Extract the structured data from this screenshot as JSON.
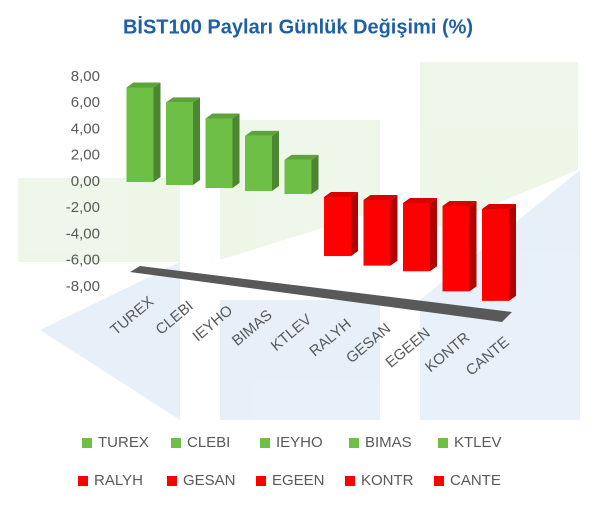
{
  "chart_data": {
    "type": "bar3d",
    "title": "BİST100 Payları Günlük Değişimi (%)",
    "categories": [
      "TUREX",
      "CLEBI",
      "IEYHO",
      "BIMAS",
      "KTLEV",
      "RALYH",
      "GESAN",
      "EGEEN",
      "KONTR",
      "CANTE"
    ],
    "values": [
      7.2,
      6.3,
      5.3,
      4.2,
      2.6,
      -4.5,
      -5.0,
      -5.2,
      -6.5,
      -7.0
    ],
    "colors": [
      "#6dbf45",
      "#6dbf45",
      "#6dbf45",
      "#6dbf45",
      "#6dbf45",
      "#ff0000",
      "#ff0000",
      "#ff0000",
      "#ff0000",
      "#ff0000"
    ],
    "ylim": [
      -8,
      8
    ],
    "yticks": [
      {
        "value": 8,
        "label": "8,00"
      },
      {
        "value": 6,
        "label": "6,00"
      },
      {
        "value": 4,
        "label": "4,00"
      },
      {
        "value": 2,
        "label": "2,00"
      },
      {
        "value": 0,
        "label": "0,00"
      },
      {
        "value": -2,
        "label": "-2,00"
      },
      {
        "value": -4,
        "label": "-4,00"
      },
      {
        "value": -6,
        "label": "-6,00"
      },
      {
        "value": -8,
        "label": "-8,00"
      }
    ]
  }
}
